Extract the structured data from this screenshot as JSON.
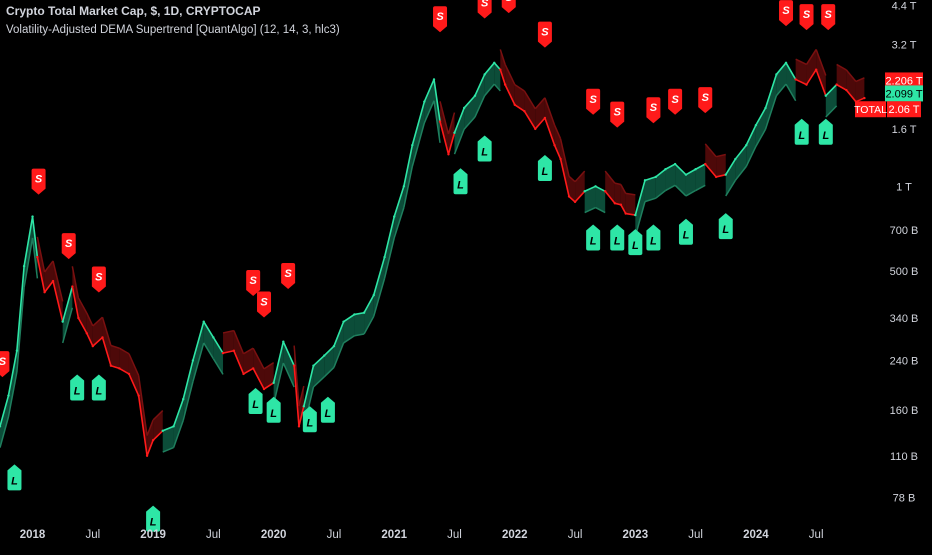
{
  "header": {
    "title": "Crypto Total Market Cap, $, 1D, CRYPTOCAP",
    "indicator": "Volatility-Adjusted DEMA Supertrend [QuantAlgo] (12, 14, 3, hlc3)"
  },
  "colors": {
    "background": "#000000",
    "bull": "#2ee6a6",
    "bull_fill": "#0e5a43",
    "bear": "#ff1a1a",
    "bear_fill": "#5a0a0a",
    "axis_text": "#d1d4dc"
  },
  "chart_data": {
    "type": "line",
    "title": "Crypto Total Market Cap, $, 1D, CRYPTOCAP",
    "y_scale": "log",
    "ylim": [
      65000000000,
      4600000000000
    ],
    "xlim": [
      2017.73,
      2024.93
    ],
    "x_ticks": [
      {
        "label": "2018",
        "x": 2018.0
      },
      {
        "label": "Jul",
        "x": 2018.5
      },
      {
        "label": "2019",
        "x": 2019.0
      },
      {
        "label": "Jul",
        "x": 2019.5
      },
      {
        "label": "2020",
        "x": 2020.0
      },
      {
        "label": "Jul",
        "x": 2020.5
      },
      {
        "label": "2021",
        "x": 2021.0
      },
      {
        "label": "Jul",
        "x": 2021.5
      },
      {
        "label": "2022",
        "x": 2022.0
      },
      {
        "label": "Jul",
        "x": 2022.5
      },
      {
        "label": "2023",
        "x": 2023.0
      },
      {
        "label": "Jul",
        "x": 2023.5
      },
      {
        "label": "2024",
        "x": 2024.0
      },
      {
        "label": "Jul",
        "x": 2024.5
      }
    ],
    "y_ticks": [
      {
        "label": "4.4 T",
        "value": 4400000000000
      },
      {
        "label": "3.2 T",
        "value": 3200000000000
      },
      {
        "label": "1.6 T",
        "value": 1600000000000
      },
      {
        "label": "1 T",
        "value": 1000000000000
      },
      {
        "label": "700 B",
        "value": 700000000000
      },
      {
        "label": "500 B",
        "value": 500000000000
      },
      {
        "label": "340 B",
        "value": 340000000000
      },
      {
        "label": "240 B",
        "value": 240000000000
      },
      {
        "label": "160 B",
        "value": 160000000000
      },
      {
        "label": "110 B",
        "value": 110000000000
      },
      {
        "label": "78 B",
        "value": 78000000000
      }
    ],
    "price_tags": [
      {
        "label": "2.206 T",
        "value": 2380000000000,
        "style": "bear"
      },
      {
        "label": "2.099 T",
        "value": 2140000000000,
        "style": "bull"
      },
      {
        "label": "TOTAL",
        "label2": "2.06 T",
        "value": 1880000000000,
        "style": "bear"
      }
    ],
    "series": [
      {
        "name": "TOTAL",
        "x": [
          2017.73,
          2017.8,
          2017.87,
          2017.93,
          2018.0,
          2018.04,
          2018.1,
          2018.17,
          2018.25,
          2018.33,
          2018.38,
          2018.45,
          2018.5,
          2018.58,
          2018.65,
          2018.72,
          2018.8,
          2018.88,
          2018.95,
          2019.0,
          2019.08,
          2019.17,
          2019.25,
          2019.33,
          2019.42,
          2019.5,
          2019.58,
          2019.67,
          2019.75,
          2019.83,
          2019.92,
          2020.0,
          2020.08,
          2020.17,
          2020.21,
          2020.25,
          2020.33,
          2020.42,
          2020.5,
          2020.58,
          2020.67,
          2020.75,
          2020.83,
          2020.92,
          2021.0,
          2021.08,
          2021.15,
          2021.25,
          2021.33,
          2021.38,
          2021.45,
          2021.5,
          2021.58,
          2021.67,
          2021.75,
          2021.83,
          2021.88,
          2021.92,
          2022.0,
          2022.08,
          2022.17,
          2022.25,
          2022.33,
          2022.38,
          2022.45,
          2022.5,
          2022.58,
          2022.67,
          2022.75,
          2022.83,
          2022.88,
          2022.92,
          2023.0,
          2023.08,
          2023.17,
          2023.25,
          2023.33,
          2023.42,
          2023.5,
          2023.58,
          2023.67,
          2023.75,
          2023.83,
          2023.92,
          2024.0,
          2024.08,
          2024.17,
          2024.25,
          2024.33,
          2024.42,
          2024.5,
          2024.58,
          2024.67,
          2024.75,
          2024.83,
          2024.9
        ],
        "values": [
          140,
          180,
          260,
          520,
          780,
          560,
          420,
          460,
          330,
          440,
          340,
          300,
          270,
          290,
          230,
          225,
          215,
          180,
          110,
          125,
          135,
          140,
          175,
          240,
          330,
          290,
          255,
          260,
          215,
          225,
          190,
          200,
          280,
          230,
          140,
          165,
          230,
          250,
          270,
          330,
          350,
          355,
          410,
          560,
          780,
          1000,
          1400,
          2000,
          2400,
          1700,
          1300,
          1550,
          1900,
          2100,
          2500,
          2750,
          2600,
          2300,
          1950,
          1850,
          1600,
          1750,
          1400,
          1250,
          920,
          880,
          960,
          1000,
          960,
          870,
          860,
          800,
          790,
          1050,
          1080,
          1150,
          1200,
          1100,
          1150,
          1200,
          1080,
          1100,
          1250,
          1400,
          1650,
          1900,
          2500,
          2750,
          2400,
          2300,
          2600,
          2100,
          2300,
          2200,
          2000,
          2060
        ]
      }
    ],
    "signals": [
      {
        "type": "S",
        "x": 2017.75,
        "y": 175
      },
      {
        "type": "L",
        "x": 2017.85,
        "y": 115
      },
      {
        "type": "S",
        "x": 2018.05,
        "y": 780
      },
      {
        "type": "S",
        "x": 2018.3,
        "y": 460
      },
      {
        "type": "L",
        "x": 2018.37,
        "y": 240
      },
      {
        "type": "S",
        "x": 2018.55,
        "y": 350
      },
      {
        "type": "L",
        "x": 2018.55,
        "y": 240
      },
      {
        "type": "L",
        "x": 2019.0,
        "y": 82
      },
      {
        "type": "S",
        "x": 2019.83,
        "y": 340
      },
      {
        "type": "S",
        "x": 2019.92,
        "y": 285
      },
      {
        "type": "L",
        "x": 2019.85,
        "y": 215
      },
      {
        "type": "L",
        "x": 2020.0,
        "y": 200
      },
      {
        "type": "S",
        "x": 2020.12,
        "y": 360
      },
      {
        "type": "L",
        "x": 2020.3,
        "y": 185
      },
      {
        "type": "L",
        "x": 2020.45,
        "y": 200
      },
      {
        "type": "S",
        "x": 2021.38,
        "y": 2950
      },
      {
        "type": "L",
        "x": 2021.55,
        "y": 1300
      },
      {
        "type": "S",
        "x": 2021.75,
        "y": 3300
      },
      {
        "type": "L",
        "x": 2021.75,
        "y": 1700
      },
      {
        "type": "S",
        "x": 2021.95,
        "y": 3450
      },
      {
        "type": "S",
        "x": 2022.25,
        "y": 2600
      },
      {
        "type": "L",
        "x": 2022.25,
        "y": 1450
      },
      {
        "type": "S",
        "x": 2022.65,
        "y": 1500
      },
      {
        "type": "L",
        "x": 2022.65,
        "y": 820
      },
      {
        "type": "S",
        "x": 2022.85,
        "y": 1350
      },
      {
        "type": "L",
        "x": 2022.85,
        "y": 820
      },
      {
        "type": "L",
        "x": 2023.0,
        "y": 790
      },
      {
        "type": "S",
        "x": 2023.15,
        "y": 1400
      },
      {
        "type": "L",
        "x": 2023.15,
        "y": 820
      },
      {
        "type": "S",
        "x": 2023.33,
        "y": 1500
      },
      {
        "type": "L",
        "x": 2023.42,
        "y": 860
      },
      {
        "type": "S",
        "x": 2023.58,
        "y": 1520
      },
      {
        "type": "L",
        "x": 2023.75,
        "y": 900
      },
      {
        "type": "S",
        "x": 2024.25,
        "y": 3100
      },
      {
        "type": "S",
        "x": 2024.42,
        "y": 3000
      },
      {
        "type": "L",
        "x": 2024.38,
        "y": 1950
      },
      {
        "type": "S",
        "x": 2024.6,
        "y": 3000
      },
      {
        "type": "L",
        "x": 2024.58,
        "y": 1950
      }
    ]
  }
}
